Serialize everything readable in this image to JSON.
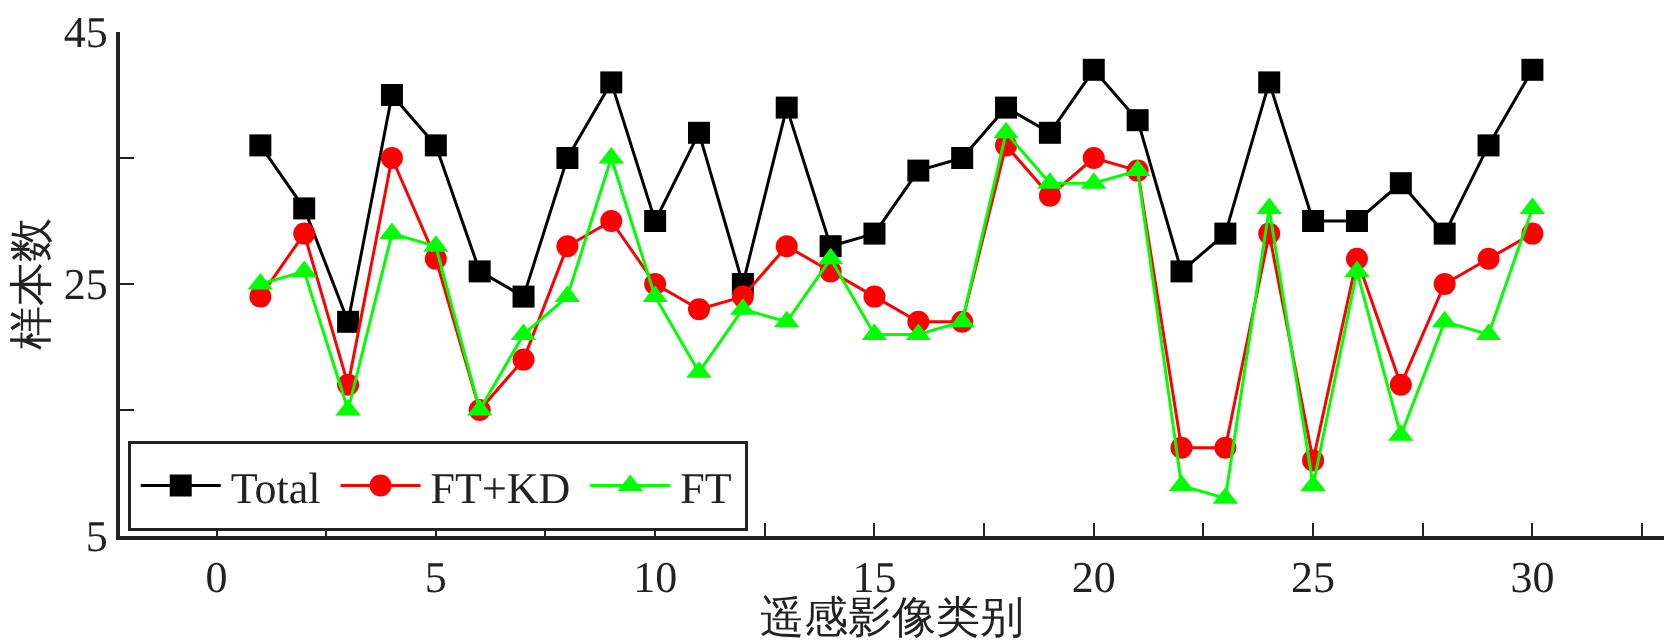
{
  "chart_data": {
    "type": "line",
    "xlabel": "遥感影像类别",
    "ylabel": "样本数",
    "x": [
      1,
      2,
      3,
      4,
      5,
      6,
      7,
      8,
      9,
      10,
      11,
      12,
      13,
      14,
      15,
      16,
      17,
      18,
      19,
      20,
      21,
      22,
      23,
      24,
      25,
      26,
      27,
      28,
      29,
      30
    ],
    "series": [
      {
        "name": "Total",
        "color": "#000000",
        "marker": "square",
        "values": [
          36,
          31,
          22,
          40,
          36,
          26,
          24,
          35,
          41,
          30,
          37,
          25,
          39,
          28,
          29,
          34,
          35,
          39,
          37,
          42,
          38,
          26,
          29,
          41,
          30,
          30,
          33,
          29,
          36,
          42
        ]
      },
      {
        "name": "FT+KD",
        "color": "#ff0000",
        "marker": "circle",
        "values": [
          24,
          29,
          17,
          35,
          27,
          15,
          19,
          28,
          30,
          25,
          23,
          24,
          28,
          26,
          24,
          22,
          22,
          36,
          32,
          35,
          34,
          12,
          12,
          29,
          11,
          27,
          17,
          25,
          27,
          29
        ]
      },
      {
        "name": "FT",
        "color": "#00ff00",
        "marker": "triangle",
        "values": [
          25,
          26,
          15,
          29,
          28,
          15,
          21,
          24,
          35,
          24,
          18,
          23,
          22,
          27,
          21,
          21,
          22,
          37,
          33,
          33,
          34,
          9,
          8,
          31,
          9,
          26,
          13,
          22,
          21,
          31
        ]
      }
    ],
    "xlim": [
      -2.2,
      33
    ],
    "xticks": [
      0,
      {
        "value": 2.5,
        "label": null
      },
      5,
      {
        "value": 7.5,
        "label": null
      },
      10,
      {
        "value": 12.5,
        "label": null
      },
      15,
      {
        "value": 17.5,
        "label": null
      },
      20,
      {
        "value": 22.5,
        "label": null
      },
      25,
      {
        "value": 27.5,
        "label": null
      },
      30,
      {
        "value": 32.5,
        "label": null
      }
    ],
    "ylim": [
      5,
      45
    ],
    "yticks": [
      5,
      {
        "value": 15,
        "label": null
      },
      25,
      {
        "value": 35,
        "label": null
      },
      45
    ],
    "legend": "bottom left",
    "line_style": "solid"
  }
}
